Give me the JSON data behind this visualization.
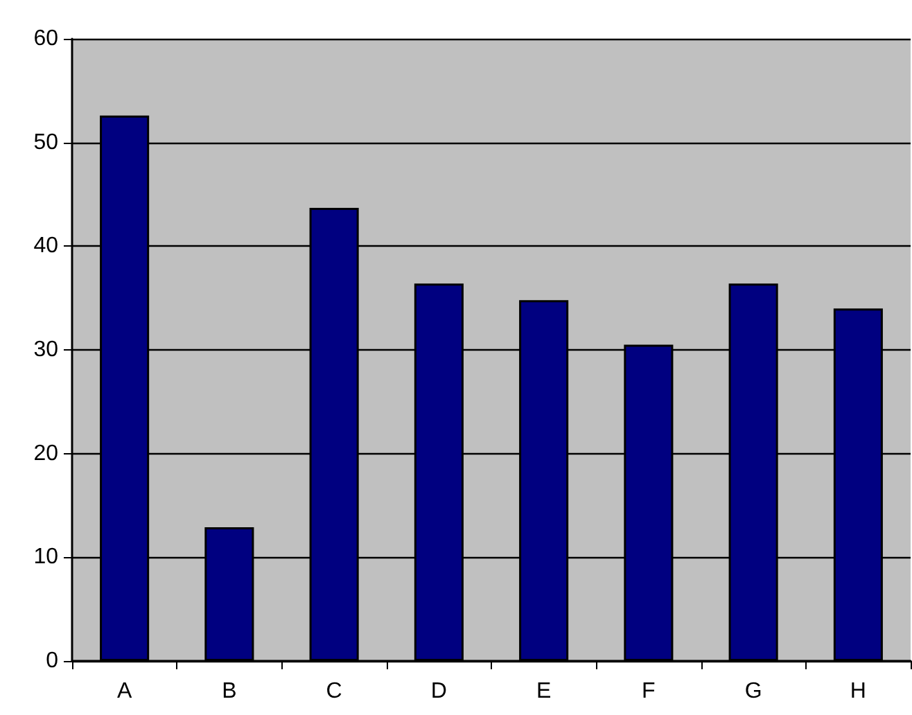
{
  "chart_data": {
    "type": "bar",
    "categories": [
      "A",
      "B",
      "C",
      "D",
      "E",
      "F",
      "G",
      "H"
    ],
    "values": [
      52.6,
      12.9,
      43.7,
      36.4,
      34.8,
      30.5,
      36.4,
      34.0
    ],
    "color": "#000080",
    "ylim": [
      0,
      60
    ],
    "yticks": [
      0,
      10,
      20,
      30,
      40,
      50,
      60
    ],
    "grid": "y"
  }
}
